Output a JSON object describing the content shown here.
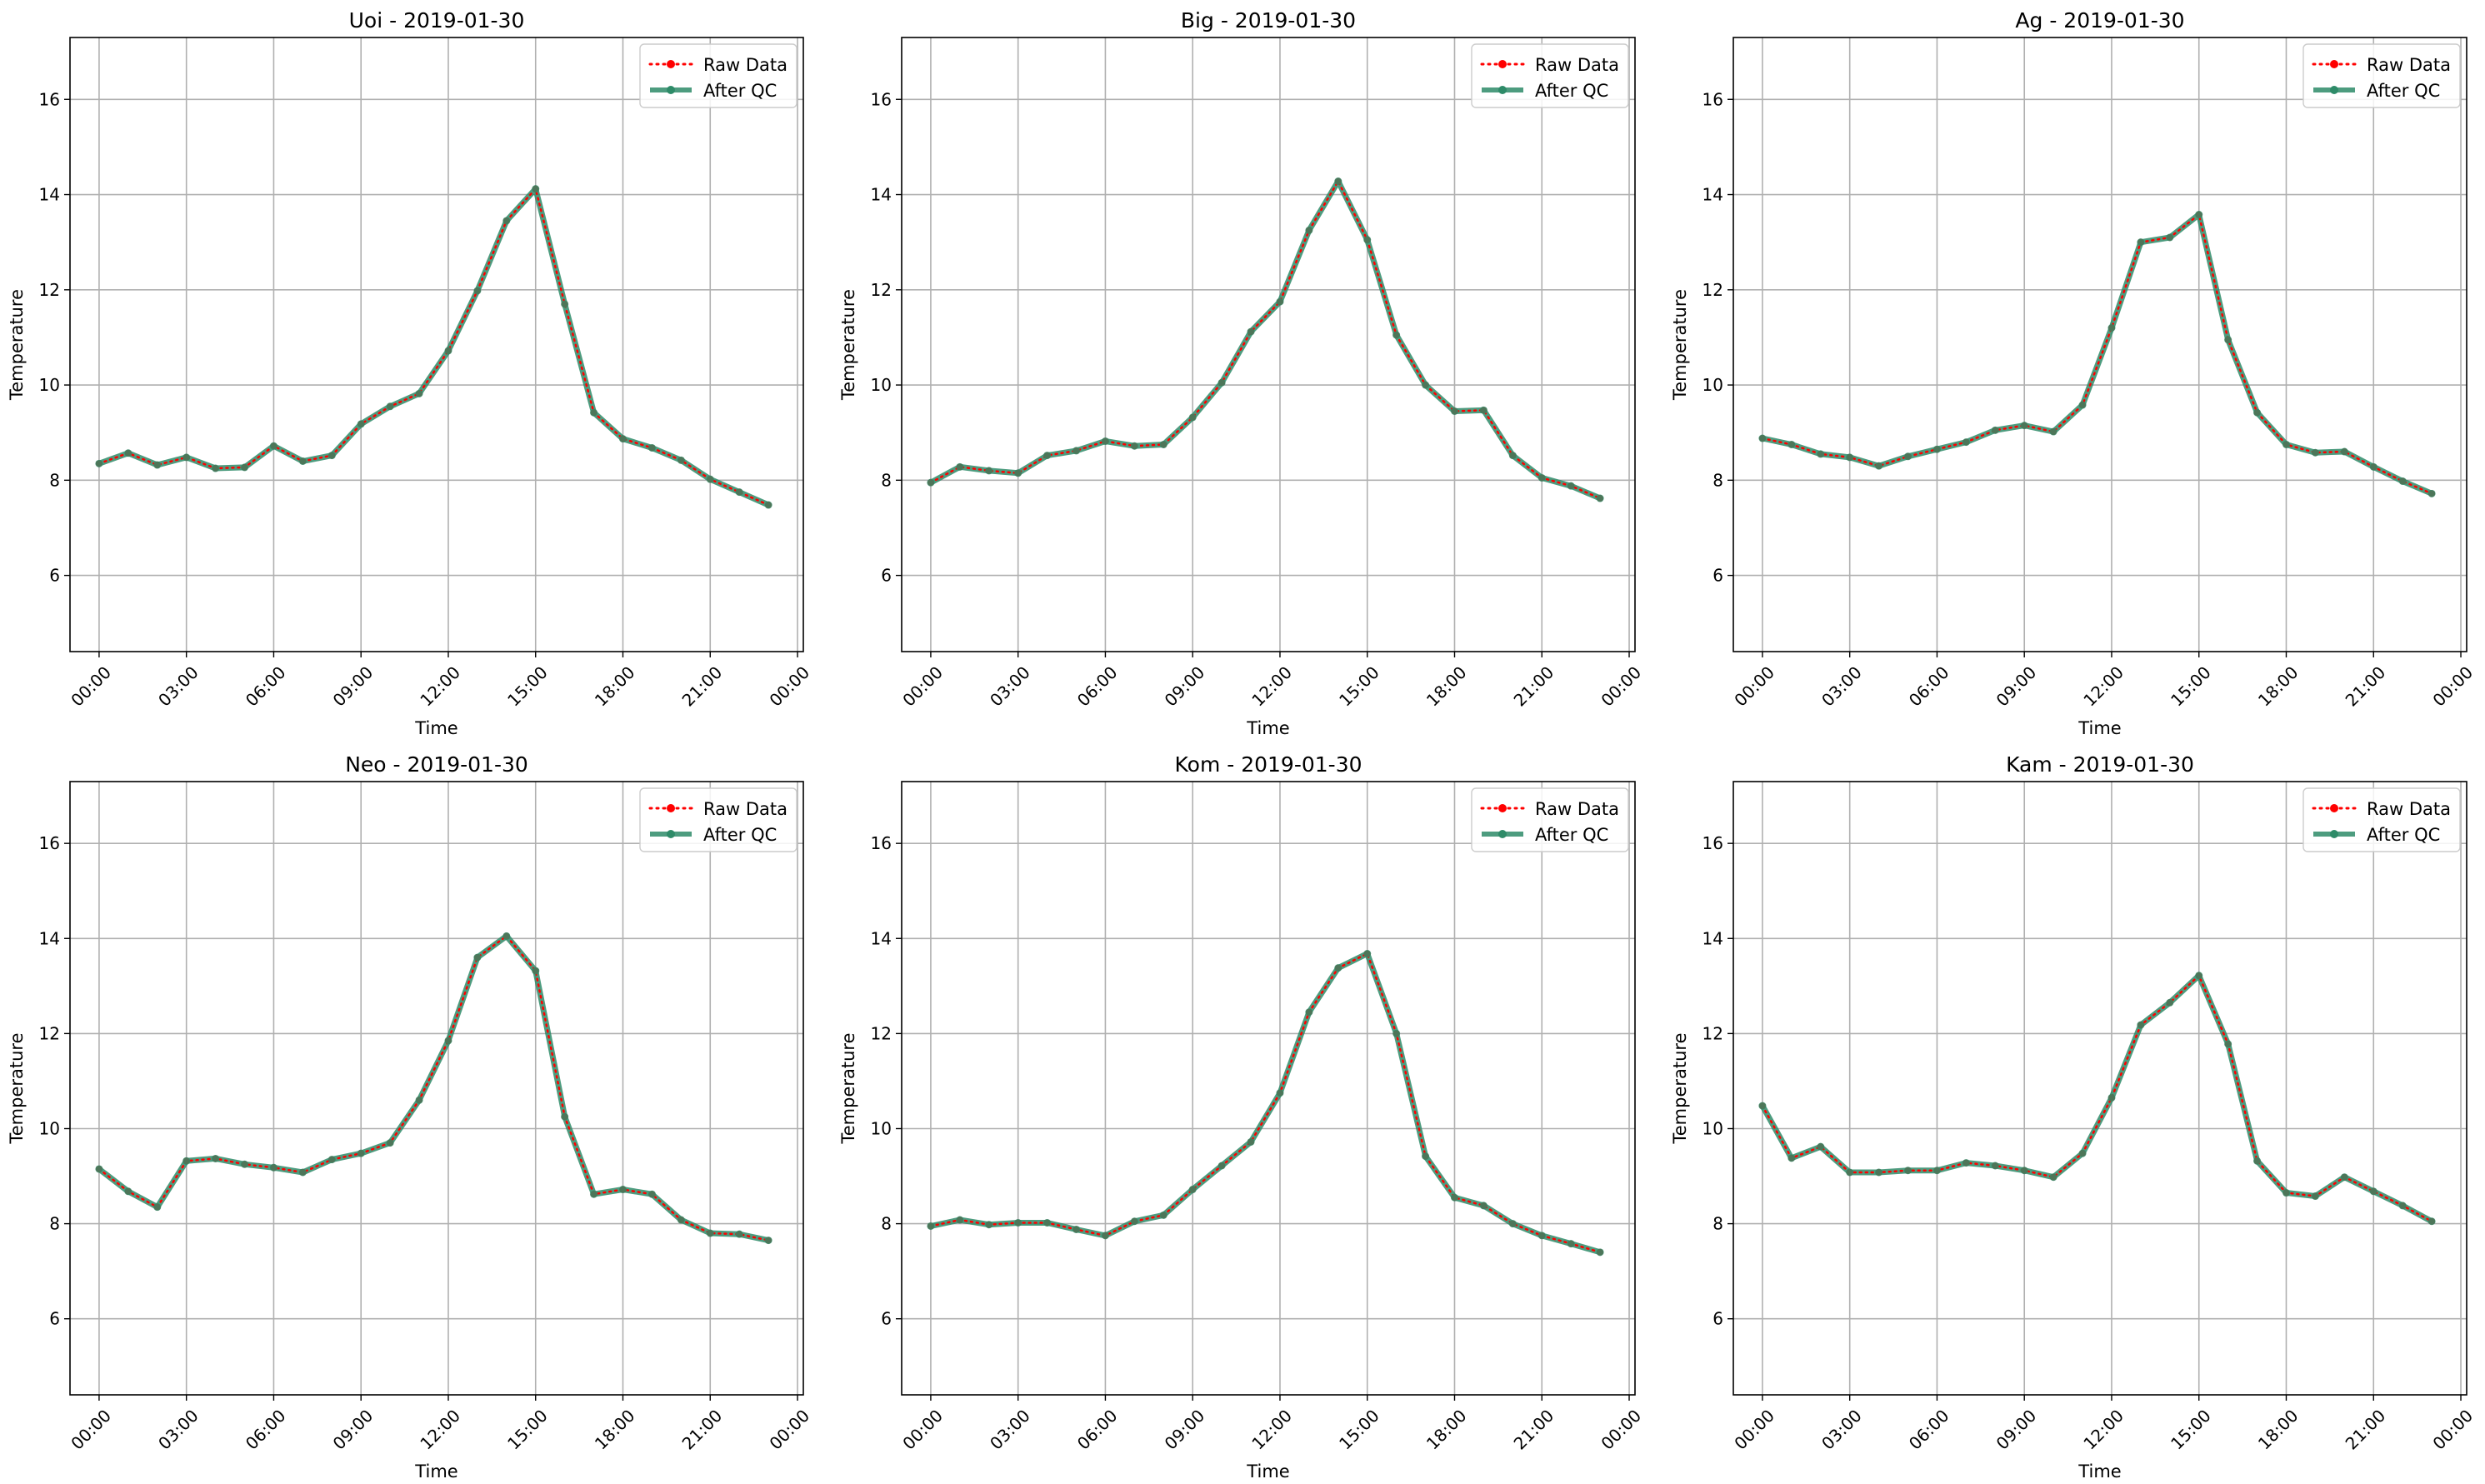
{
  "figure": {
    "background": "#ffffff"
  },
  "style": {
    "raw_color": "#ff0000",
    "qc_color": "#2e8b68",
    "grid_color": "#b0b0b0"
  },
  "legend": {
    "raw_label": "Raw Data",
    "qc_label": "After QC",
    "placement": "upper right"
  },
  "chart_data": [
    {
      "type": "line",
      "title": "Uoi - 2019-01-30",
      "xlabel": "Time",
      "ylabel": "Temperature",
      "x": [
        "00:00",
        "01:00",
        "02:00",
        "03:00",
        "04:00",
        "05:00",
        "06:00",
        "07:00",
        "08:00",
        "09:00",
        "10:00",
        "11:00",
        "12:00",
        "13:00",
        "14:00",
        "15:00",
        "16:00",
        "17:00",
        "18:00",
        "19:00",
        "20:00",
        "21:00",
        "22:00",
        "23:00"
      ],
      "xticks": [
        "00:00",
        "03:00",
        "06:00",
        "09:00",
        "12:00",
        "15:00",
        "18:00",
        "21:00",
        "00:00"
      ],
      "yticks": [
        "6",
        "8",
        "10",
        "12",
        "14",
        "16"
      ],
      "ylim": [
        4.4,
        17.3
      ],
      "grid": true,
      "series": [
        {
          "name": "Raw Data",
          "values": [
            8.35,
            8.57,
            8.32,
            8.48,
            8.25,
            8.27,
            8.72,
            8.4,
            8.52,
            9.18,
            9.55,
            9.82,
            10.72,
            11.98,
            13.45,
            14.12,
            11.7,
            9.42,
            8.87,
            8.68,
            8.42,
            8.02,
            7.75,
            7.48
          ]
        },
        {
          "name": "After QC",
          "values": [
            8.35,
            8.57,
            8.32,
            8.48,
            8.25,
            8.27,
            8.72,
            8.4,
            8.52,
            9.18,
            9.55,
            9.82,
            10.72,
            11.98,
            13.45,
            14.12,
            11.7,
            9.42,
            8.87,
            8.68,
            8.42,
            8.02,
            7.75,
            7.48
          ]
        }
      ]
    },
    {
      "type": "line",
      "title": "Big - 2019-01-30",
      "xlabel": "Time",
      "ylabel": "Temperature",
      "x": [
        "00:00",
        "01:00",
        "02:00",
        "03:00",
        "04:00",
        "05:00",
        "06:00",
        "07:00",
        "08:00",
        "09:00",
        "10:00",
        "11:00",
        "12:00",
        "13:00",
        "14:00",
        "15:00",
        "16:00",
        "17:00",
        "18:00",
        "19:00",
        "20:00",
        "21:00",
        "22:00",
        "23:00"
      ],
      "xticks": [
        "00:00",
        "03:00",
        "06:00",
        "09:00",
        "12:00",
        "15:00",
        "18:00",
        "21:00",
        "00:00"
      ],
      "yticks": [
        "6",
        "8",
        "10",
        "12",
        "14",
        "16"
      ],
      "ylim": [
        4.4,
        17.3
      ],
      "grid": true,
      "series": [
        {
          "name": "Raw Data",
          "values": [
            7.95,
            8.28,
            8.2,
            8.15,
            8.52,
            8.62,
            8.82,
            8.72,
            8.75,
            9.32,
            10.05,
            11.12,
            11.75,
            13.25,
            14.28,
            13.05,
            11.05,
            10.0,
            9.45,
            9.47,
            8.52,
            8.05,
            7.88,
            7.62
          ]
        },
        {
          "name": "After QC",
          "values": [
            7.95,
            8.28,
            8.2,
            8.15,
            8.52,
            8.62,
            8.82,
            8.72,
            8.75,
            9.32,
            10.05,
            11.12,
            11.75,
            13.25,
            14.28,
            13.05,
            11.05,
            10.0,
            9.45,
            9.47,
            8.52,
            8.05,
            7.88,
            7.62
          ]
        }
      ]
    },
    {
      "type": "line",
      "title": "Ag - 2019-01-30",
      "xlabel": "Time",
      "ylabel": "Temperature",
      "x": [
        "00:00",
        "01:00",
        "02:00",
        "03:00",
        "04:00",
        "05:00",
        "06:00",
        "07:00",
        "08:00",
        "09:00",
        "10:00",
        "11:00",
        "12:00",
        "13:00",
        "14:00",
        "15:00",
        "16:00",
        "17:00",
        "18:00",
        "19:00",
        "20:00",
        "21:00",
        "22:00",
        "23:00"
      ],
      "xticks": [
        "00:00",
        "03:00",
        "06:00",
        "09:00",
        "12:00",
        "15:00",
        "18:00",
        "21:00",
        "00:00"
      ],
      "yticks": [
        "6",
        "8",
        "10",
        "12",
        "14",
        "16"
      ],
      "ylim": [
        4.4,
        17.3
      ],
      "grid": true,
      "series": [
        {
          "name": "Raw Data",
          "values": [
            8.88,
            8.75,
            8.55,
            8.48,
            8.3,
            8.5,
            8.65,
            8.8,
            9.05,
            9.15,
            9.02,
            9.58,
            11.2,
            13.0,
            13.1,
            13.58,
            10.95,
            9.42,
            8.75,
            8.58,
            8.6,
            8.28,
            7.98,
            7.72
          ]
        },
        {
          "name": "After QC",
          "values": [
            8.88,
            8.75,
            8.55,
            8.48,
            8.3,
            8.5,
            8.65,
            8.8,
            9.05,
            9.15,
            9.02,
            9.58,
            11.2,
            13.0,
            13.1,
            13.58,
            10.95,
            9.42,
            8.75,
            8.58,
            8.6,
            8.28,
            7.98,
            7.72
          ]
        }
      ]
    },
    {
      "type": "line",
      "title": "Neo - 2019-01-30",
      "xlabel": "Time",
      "ylabel": "Temperature",
      "x": [
        "00:00",
        "01:00",
        "02:00",
        "03:00",
        "04:00",
        "05:00",
        "06:00",
        "07:00",
        "08:00",
        "09:00",
        "10:00",
        "11:00",
        "12:00",
        "13:00",
        "14:00",
        "15:00",
        "16:00",
        "17:00",
        "18:00",
        "19:00",
        "20:00",
        "21:00",
        "22:00",
        "23:00"
      ],
      "xticks": [
        "00:00",
        "03:00",
        "06:00",
        "09:00",
        "12:00",
        "15:00",
        "18:00",
        "21:00",
        "00:00"
      ],
      "yticks": [
        "6",
        "8",
        "10",
        "12",
        "14",
        "16"
      ],
      "ylim": [
        4.4,
        17.3
      ],
      "grid": true,
      "series": [
        {
          "name": "Raw Data",
          "values": [
            9.15,
            8.68,
            8.35,
            9.32,
            9.37,
            9.25,
            9.18,
            9.08,
            9.35,
            9.48,
            9.7,
            10.6,
            11.85,
            13.6,
            14.05,
            13.32,
            10.25,
            8.62,
            8.72,
            8.62,
            8.08,
            7.8,
            7.78,
            7.65
          ]
        },
        {
          "name": "After QC",
          "values": [
            9.15,
            8.68,
            8.35,
            9.32,
            9.37,
            9.25,
            9.18,
            9.08,
            9.35,
            9.48,
            9.7,
            10.6,
            11.85,
            13.6,
            14.05,
            13.32,
            10.25,
            8.62,
            8.72,
            8.62,
            8.08,
            7.8,
            7.78,
            7.65
          ]
        }
      ]
    },
    {
      "type": "line",
      "title": "Kom - 2019-01-30",
      "xlabel": "Time",
      "ylabel": "Temperature",
      "x": [
        "00:00",
        "01:00",
        "02:00",
        "03:00",
        "04:00",
        "05:00",
        "06:00",
        "07:00",
        "08:00",
        "09:00",
        "10:00",
        "11:00",
        "12:00",
        "13:00",
        "14:00",
        "15:00",
        "16:00",
        "17:00",
        "18:00",
        "19:00",
        "20:00",
        "21:00",
        "22:00",
        "23:00"
      ],
      "xticks": [
        "00:00",
        "03:00",
        "06:00",
        "09:00",
        "12:00",
        "15:00",
        "18:00",
        "21:00",
        "00:00"
      ],
      "yticks": [
        "6",
        "8",
        "10",
        "12",
        "14",
        "16"
      ],
      "ylim": [
        4.4,
        17.3
      ],
      "grid": true,
      "series": [
        {
          "name": "Raw Data",
          "values": [
            7.95,
            8.08,
            7.98,
            8.02,
            8.02,
            7.88,
            7.75,
            8.05,
            8.18,
            8.72,
            9.22,
            9.72,
            10.75,
            12.45,
            13.38,
            13.68,
            12.0,
            9.42,
            8.55,
            8.38,
            8.0,
            7.75,
            7.58,
            7.4
          ]
        },
        {
          "name": "After QC",
          "values": [
            7.95,
            8.08,
            7.98,
            8.02,
            8.02,
            7.88,
            7.75,
            8.05,
            8.18,
            8.72,
            9.22,
            9.72,
            10.75,
            12.45,
            13.38,
            13.68,
            12.0,
            9.42,
            8.55,
            8.38,
            8.0,
            7.75,
            7.58,
            7.4
          ]
        }
      ]
    },
    {
      "type": "line",
      "title": "Kam - 2019-01-30",
      "xlabel": "Time",
      "ylabel": "Temperature",
      "x": [
        "00:00",
        "01:00",
        "02:00",
        "03:00",
        "04:00",
        "05:00",
        "06:00",
        "07:00",
        "08:00",
        "09:00",
        "10:00",
        "11:00",
        "12:00",
        "13:00",
        "14:00",
        "15:00",
        "16:00",
        "17:00",
        "18:00",
        "19:00",
        "20:00",
        "21:00",
        "22:00",
        "23:00"
      ],
      "xticks": [
        "00:00",
        "03:00",
        "06:00",
        "09:00",
        "12:00",
        "15:00",
        "18:00",
        "21:00",
        "00:00"
      ],
      "yticks": [
        "6",
        "8",
        "10",
        "12",
        "14",
        "16"
      ],
      "ylim": [
        4.4,
        17.3
      ],
      "grid": true,
      "series": [
        {
          "name": "Raw Data",
          "values": [
            10.48,
            9.38,
            9.62,
            9.08,
            9.08,
            9.12,
            9.12,
            9.28,
            9.22,
            9.12,
            8.98,
            9.48,
            10.65,
            12.18,
            12.65,
            13.22,
            11.78,
            9.32,
            8.65,
            8.58,
            8.98,
            8.68,
            8.38,
            8.05
          ]
        },
        {
          "name": "After QC",
          "values": [
            10.48,
            9.38,
            9.62,
            9.08,
            9.08,
            9.12,
            9.12,
            9.28,
            9.22,
            9.12,
            8.98,
            9.48,
            10.65,
            12.18,
            12.65,
            13.22,
            11.78,
            9.32,
            8.65,
            8.58,
            8.98,
            8.68,
            8.38,
            8.05
          ]
        }
      ]
    }
  ]
}
